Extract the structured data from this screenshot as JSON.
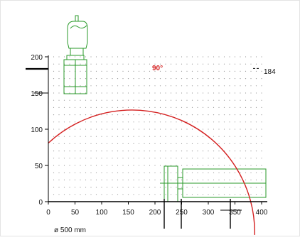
{
  "chart_data": {
    "type": "diagram",
    "x_ticks": [
      0,
      50,
      100,
      150,
      200,
      250,
      300,
      350,
      400
    ],
    "y_ticks": [
      0,
      50,
      100,
      150,
      200
    ],
    "xlim": [
      0,
      400
    ],
    "ylim": [
      0,
      200
    ],
    "grid": "dotted",
    "arc": {
      "label": "90°",
      "color": "#d42020",
      "center_x": 152,
      "center_y": -46,
      "radius": 230,
      "start_x": 0,
      "end_x": 387
    },
    "reference_line": {
      "value": 184,
      "label": "184"
    },
    "diameter_label": "ø 500 mm",
    "outline_color": "#2a9a2a",
    "axis_color": "#000000",
    "grid_color": "#999999"
  }
}
